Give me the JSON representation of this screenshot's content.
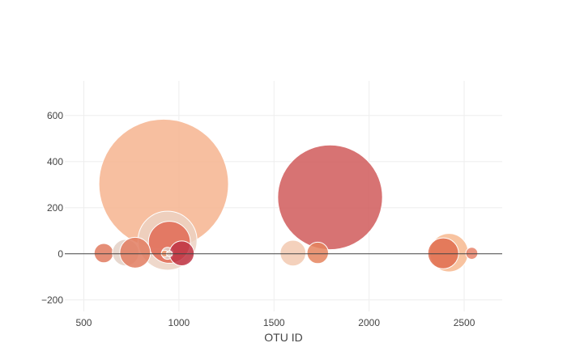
{
  "chart_data": {
    "type": "scatter",
    "title": "",
    "xlabel": "OTU ID",
    "ylabel": "",
    "xlim": [
      400,
      2700
    ],
    "ylim": [
      -250,
      750
    ],
    "x_ticks": [
      500,
      1000,
      1500,
      2000,
      2500
    ],
    "y_ticks": [
      -200,
      0,
      200,
      400,
      600
    ],
    "x_tick_labels": [
      "500",
      "1000",
      "1500",
      "2000",
      "2500"
    ],
    "y_tick_labels": [
      "−200",
      "0",
      "200",
      "400",
      "600"
    ],
    "grid": true,
    "zero_line": true,
    "legend": "none",
    "series": [
      {
        "marker": "bubble",
        "x": [
          920,
          940,
          950,
          1795,
          605,
          720,
          770,
          940,
          1015,
          1600,
          1730,
          2420,
          2390,
          2540,
          925,
          950
        ],
        "y": [
          303,
          57,
          50,
          245,
          3,
          5,
          5,
          2,
          2,
          3,
          4,
          5,
          2,
          2,
          1,
          0
        ],
        "size": [
          303,
          138,
          98,
          245,
          45,
          62,
          72,
          28,
          58,
          60,
          50,
          90,
          72,
          28,
          16,
          14
        ],
        "color": [
          "#f6b48f",
          "#ecd1c2",
          "#e06a55",
          "#d05a5a",
          "#e07a5f",
          "#e3d0c6",
          "#e27d60",
          "#e0d0c8",
          "#c03545",
          "#f2c9b0",
          "#e5845e",
          "#f7b98f",
          "#e06d4f",
          "#e8836a",
          "#f29a6d",
          "#eed6c8"
        ]
      }
    ]
  }
}
